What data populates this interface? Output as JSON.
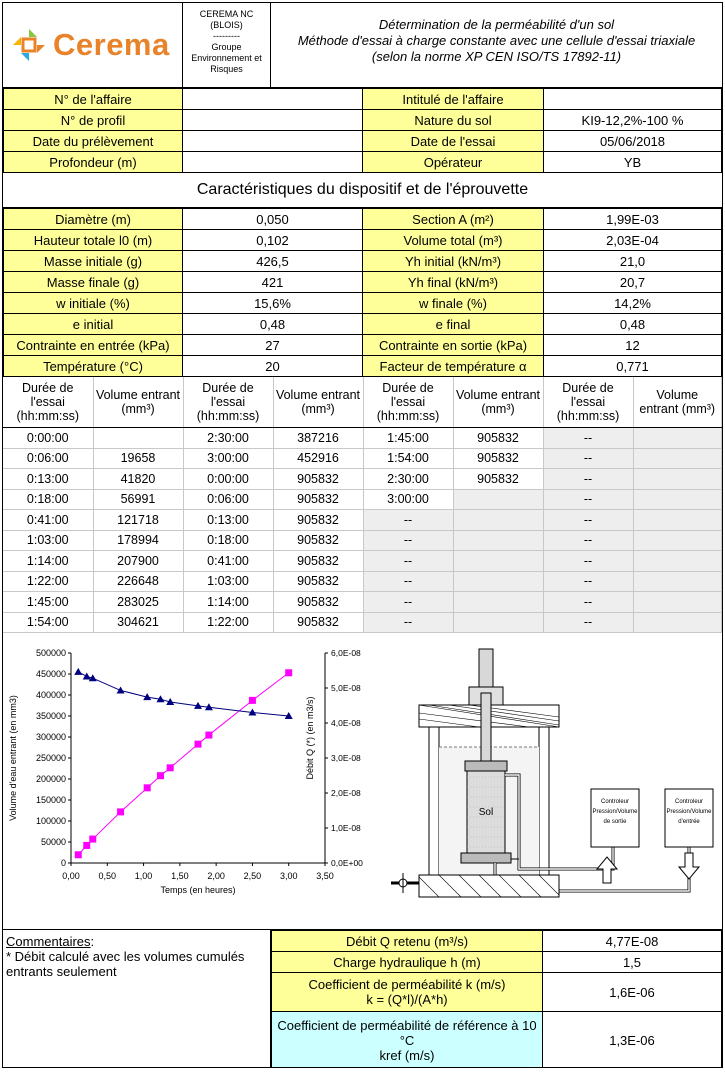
{
  "header": {
    "logo_text": "Cerema",
    "org_lines": [
      "CEREMA NC",
      "(BLOIS)",
      "---------",
      "Groupe",
      "Environnement et",
      "Risques"
    ],
    "title_lines": [
      "Détermination de la perméabilité d'un sol",
      "Méthode d'essai à charge constante avec une cellule d'essai triaxiale",
      "(selon la norme XP CEN ISO/TS 17892-11)"
    ]
  },
  "info": [
    {
      "l1": "N° de l'affaire",
      "v1": "",
      "l2": "Intitulé de l'affaire",
      "v2": ""
    },
    {
      "l1": "N° de profil",
      "v1": "",
      "l2": "Nature du sol",
      "v2": "KI9-12,2%-100 %"
    },
    {
      "l1": "Date du prélèvement",
      "v1": "",
      "l2": "Date de l'essai",
      "v2": "05/06/2018"
    },
    {
      "l1": "Profondeur (m)",
      "v1": "",
      "l2": "Opérateur",
      "v2": "YB"
    }
  ],
  "section_title": "Caractéristiques du dispositif et de l'éprouvette",
  "characteristics": [
    {
      "l1": "Diamètre (m)",
      "v1": "0,050",
      "l2": "Section A (m²)",
      "v2": "1,99E-03"
    },
    {
      "l1": "Hauteur totale l0 (m)",
      "v1": "0,102",
      "l2": "Volume total (m³)",
      "v2": "2,03E-04"
    },
    {
      "l1": "Masse initiale (g)",
      "v1": "426,5",
      "l2": "Yh initial (kN/m³)",
      "v2": "21,0"
    },
    {
      "l1": "Masse finale (g)",
      "v1": "421",
      "l2": "Yh final (kN/m³)",
      "v2": "20,7"
    },
    {
      "l1": "w initiale (%)",
      "v1": "15,6%",
      "l2": "w finale (%)",
      "v2": "14,2%"
    },
    {
      "l1": "e initial",
      "v1": "0,48",
      "l2": "e final",
      "v2": "0,48"
    },
    {
      "l1": "Contrainte en entrée (kPa)",
      "v1": "27",
      "l2": "Contrainte en sortie (kPa)",
      "v2": "12"
    },
    {
      "l1": "Température (°C)",
      "v1": "20",
      "l2": "Facteur de température α",
      "v2": "0,771"
    }
  ],
  "time_table": {
    "headers": [
      "Durée de l'essai (hh:mm:ss)",
      "Volume entrant (mm³)",
      "Durée de l'essai (hh:mm:ss)",
      "Volume entrant (mm³)",
      "Durée de l'essai (hh:mm:ss)",
      "Volume entrant (mm³)",
      "Durée de l'essai (hh:mm:ss)",
      "Volume entrant (mm³)"
    ],
    "rows": [
      [
        "0:00:00",
        "",
        "2:30:00",
        "387216",
        "1:45:00",
        "905832",
        "--",
        ""
      ],
      [
        "0:06:00",
        "19658",
        "3:00:00",
        "452916",
        "1:54:00",
        "905832",
        "--",
        ""
      ],
      [
        "0:13:00",
        "41820",
        "0:00:00",
        "905832",
        "2:30:00",
        "905832",
        "--",
        ""
      ],
      [
        "0:18:00",
        "56991",
        "0:06:00",
        "905832",
        "3:00:00",
        "",
        "--",
        ""
      ],
      [
        "0:41:00",
        "121718",
        "0:13:00",
        "905832",
        "--",
        "",
        "--",
        ""
      ],
      [
        "1:03:00",
        "178994",
        "0:18:00",
        "905832",
        "--",
        "",
        "--",
        ""
      ],
      [
        "1:14:00",
        "207900",
        "0:41:00",
        "905832",
        "--",
        "",
        "--",
        ""
      ],
      [
        "1:22:00",
        "226648",
        "1:03:00",
        "905832",
        "--",
        "",
        "--",
        ""
      ],
      [
        "1:45:00",
        "283025",
        "1:14:00",
        "905832",
        "--",
        "",
        "--",
        ""
      ],
      [
        "1:54:00",
        "304621",
        "1:22:00",
        "905832",
        "--",
        "",
        "--",
        ""
      ]
    ]
  },
  "chart_data": {
    "type": "scatter",
    "xlabel": "Temps (en heures)",
    "ylabel_left": "Volume d'eau entrant (en mm3)",
    "ylabel_right": "Débit Q (*) (en m3/s)",
    "xlim": [
      0,
      3.5
    ],
    "x_ticks": [
      "0,00",
      "0,50",
      "1,00",
      "1,50",
      "2,00",
      "2,50",
      "3,00",
      "3,50"
    ],
    "ylim_left": [
      0,
      500000
    ],
    "y_ticks_left": [
      "0",
      "50000",
      "100000",
      "150000",
      "200000",
      "250000",
      "300000",
      "350000",
      "400000",
      "450000",
      "500000"
    ],
    "ylim_right": [
      0,
      6e-08
    ],
    "y_ticks_right": [
      "0,0E+00",
      "1,0E-08",
      "2,0E-08",
      "3,0E-08",
      "4,0E-08",
      "5,0E-08",
      "6,0E-08"
    ],
    "grid": false,
    "series": [
      {
        "axis": "left",
        "color": "#ff00ff",
        "marker": "square",
        "x": [
          0.1,
          0.217,
          0.3,
          0.683,
          1.05,
          1.233,
          1.367,
          1.75,
          1.9,
          2.5,
          3.0
        ],
        "y": [
          19658,
          41820,
          56991,
          121718,
          178994,
          207900,
          226648,
          283025,
          304621,
          387216,
          452916
        ]
      },
      {
        "axis": "right",
        "color": "#000080",
        "marker": "triangle",
        "x": [
          0.1,
          0.217,
          0.3,
          0.683,
          1.05,
          1.233,
          1.367,
          1.75,
          1.9,
          2.5,
          3.0
        ],
        "y": [
          5.46e-08,
          5.33e-08,
          5.28e-08,
          4.93e-08,
          4.74e-08,
          4.68e-08,
          4.6e-08,
          4.49e-08,
          4.45e-08,
          4.3e-08,
          4.2e-08
        ]
      }
    ]
  },
  "diagram": {
    "sol_label": "Sol",
    "box_out": [
      "Controleur",
      "Pression/Volume",
      "de sortie"
    ],
    "box_in": [
      "Controleur",
      "Pression/Volume",
      "d'entrée"
    ]
  },
  "comments": {
    "title": "Commentaires",
    "colon": ":",
    "text": "* Débit calculé avec les volumes cumulés entrants seulement"
  },
  "results": [
    {
      "label": "Débit Q retenu (m³/s)",
      "value": "4,77E-08"
    },
    {
      "label": "Charge hydraulique h (m)",
      "value": "1,5"
    },
    {
      "label": "Coefficient de perméabilité k (m/s)",
      "label2": "k = (Q*l)/(A*h)",
      "value": "1,6E-06"
    },
    {
      "label": "Coefficient de perméabilité de référence à 10 °C",
      "label2": "kref (m/s)",
      "value": "1,3E-06"
    }
  ],
  "colors": {
    "yellow": "#ffff99",
    "cyan": "#ccffff",
    "grey": "#eeeeee",
    "logo": "#e8832a",
    "magenta": "#ff00ff",
    "navy": "#000080"
  }
}
